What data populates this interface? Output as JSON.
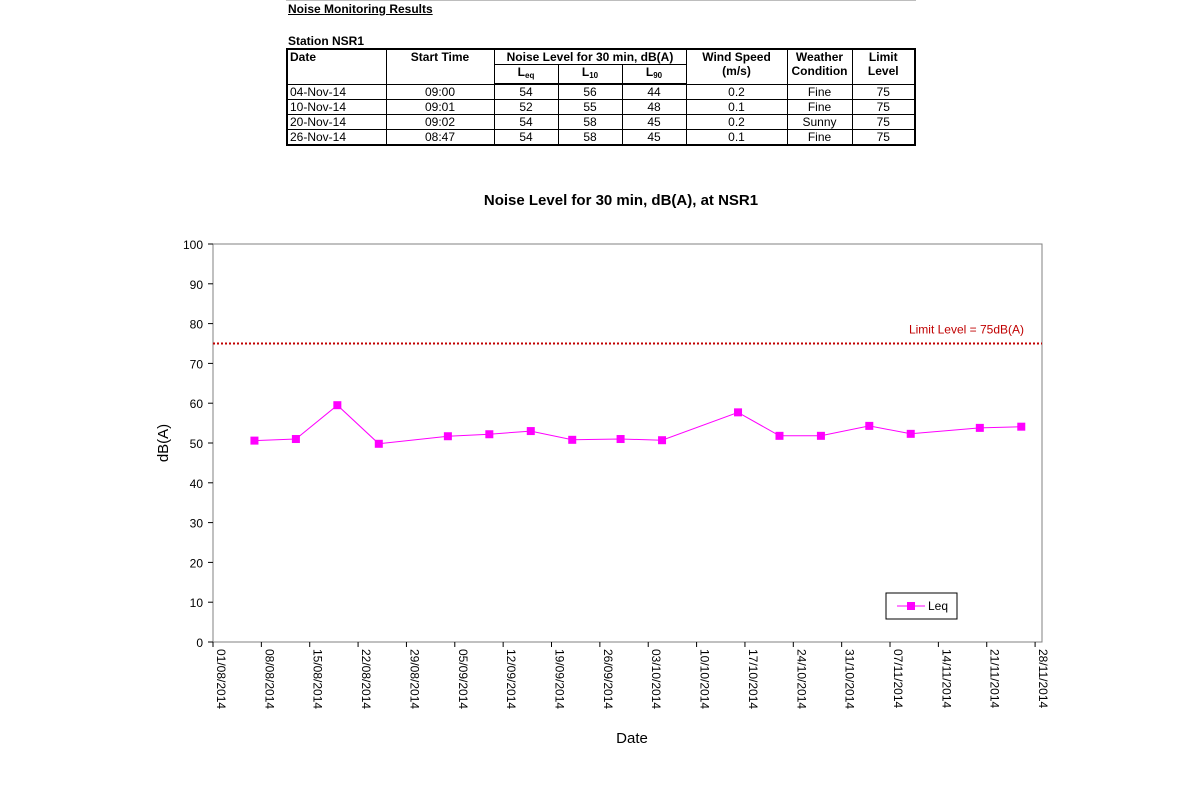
{
  "report": {
    "title": "Noise Monitoring Results",
    "station": "Station NSR1"
  },
  "table": {
    "headers": {
      "date": "Date",
      "start_time": "Start Time",
      "noise_level": "Noise Level for 30 min, dB(A)",
      "leq_main": "L",
      "leq_sub": "eq",
      "l10_main": "L",
      "l10_sub": "10",
      "l90_main": "L",
      "l90_sub": "90",
      "wind_speed_1": "Wind Speed",
      "wind_speed_2": "(m/s)",
      "weather_1": "Weather",
      "weather_2": "Condition",
      "limit_1": "Limit",
      "limit_2": "Level"
    },
    "rows": [
      {
        "date": "04-Nov-14",
        "start": "09:00",
        "leq": "54",
        "l10": "56",
        "l90": "44",
        "wind": "0.2",
        "weather": "Fine",
        "limit": "75"
      },
      {
        "date": "10-Nov-14",
        "start": "09:01",
        "leq": "52",
        "l10": "55",
        "l90": "48",
        "wind": "0.1",
        "weather": "Fine",
        "limit": "75"
      },
      {
        "date": "20-Nov-14",
        "start": "09:02",
        "leq": "54",
        "l10": "58",
        "l90": "45",
        "wind": "0.2",
        "weather": "Sunny",
        "limit": "75"
      },
      {
        "date": "26-Nov-14",
        "start": "08:47",
        "leq": "54",
        "l10": "58",
        "l90": "45",
        "wind": "0.1",
        "weather": "Fine",
        "limit": "75"
      }
    ]
  },
  "chart_data": {
    "type": "line",
    "title": "Noise Level for 30 min, dB(A), at NSR1",
    "xlabel": "Date",
    "ylabel": "dB(A)",
    "ylim": [
      0,
      100
    ],
    "y_ticks": [
      0,
      10,
      20,
      30,
      40,
      50,
      60,
      70,
      80,
      90,
      100
    ],
    "xlim": [
      "01/08/2014",
      "29/11/2014"
    ],
    "x_ticks": [
      "01/08/2014",
      "08/08/2014",
      "15/08/2014",
      "22/08/2014",
      "29/08/2014",
      "05/09/2014",
      "12/09/2014",
      "19/09/2014",
      "26/09/2014",
      "03/10/2014",
      "10/10/2014",
      "17/10/2014",
      "24/10/2014",
      "31/10/2014",
      "07/11/2014",
      "14/11/2014",
      "21/11/2014",
      "28/11/2014"
    ],
    "grid": false,
    "legend_position": "bottom-right",
    "series": [
      {
        "name": "Leq",
        "color": "#ff00ff",
        "marker": "square",
        "points": [
          {
            "x": "07/08/2014",
            "y": 50.6
          },
          {
            "x": "13/08/2014",
            "y": 51.0
          },
          {
            "x": "19/08/2014",
            "y": 59.5
          },
          {
            "x": "25/08/2014",
            "y": 49.8
          },
          {
            "x": "04/09/2014",
            "y": 51.7
          },
          {
            "x": "10/09/2014",
            "y": 52.2
          },
          {
            "x": "16/09/2014",
            "y": 53.0
          },
          {
            "x": "22/09/2014",
            "y": 50.8
          },
          {
            "x": "29/09/2014",
            "y": 51.0
          },
          {
            "x": "05/10/2014",
            "y": 50.7
          },
          {
            "x": "16/10/2014",
            "y": 57.7
          },
          {
            "x": "22/10/2014",
            "y": 51.8
          },
          {
            "x": "28/10/2014",
            "y": 51.8
          },
          {
            "x": "04/11/2014",
            "y": 54.3
          },
          {
            "x": "10/11/2014",
            "y": 52.3
          },
          {
            "x": "20/11/2014",
            "y": 53.8
          },
          {
            "x": "26/11/2014",
            "y": 54.1
          }
        ]
      }
    ],
    "limit_line": {
      "value": 75,
      "label": "Limit Level  = 75dB(A)",
      "color": "#c00000",
      "style": "dotted"
    }
  }
}
